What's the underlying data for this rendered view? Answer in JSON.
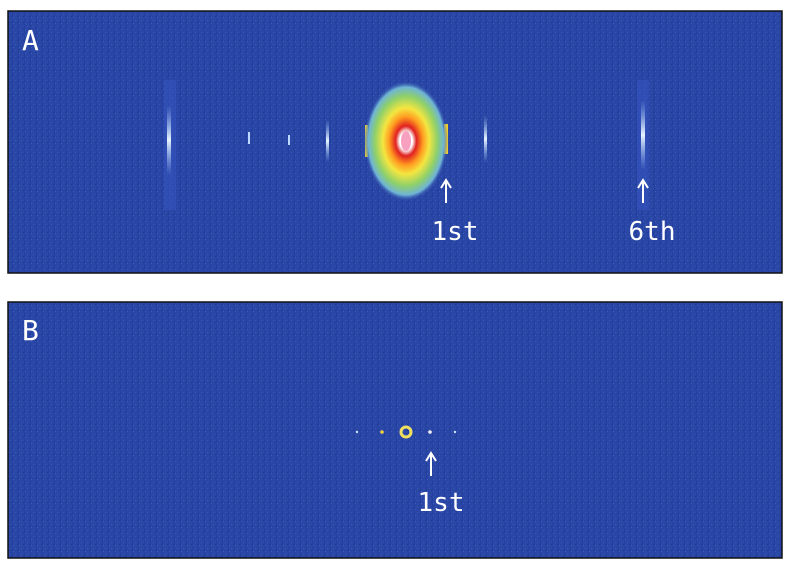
{
  "panels": [
    {
      "label": "A",
      "annotations": [
        "1st",
        "6th"
      ]
    },
    {
      "label": "B",
      "annotations": [
        "1st"
      ]
    }
  ]
}
